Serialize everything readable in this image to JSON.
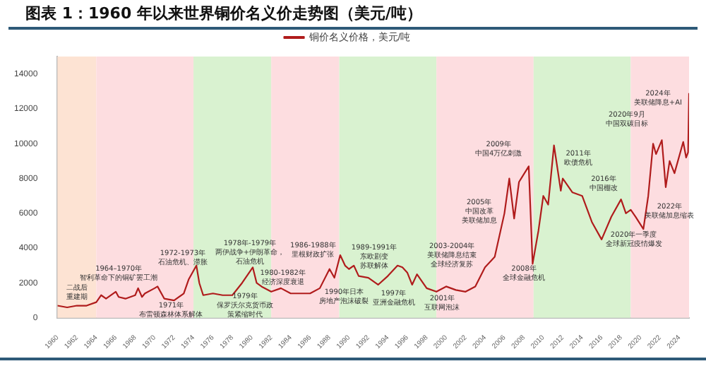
{
  "chart_data": {
    "type": "line",
    "title": "图表 1：1960 年以来世界铜价名义价走势图（美元/吨）",
    "legend": "top",
    "grid": false,
    "marker": "none",
    "line_style": "solid",
    "xlim": [
      1960,
      2025
    ],
    "xticks": [
      1960,
      1962,
      1964,
      1966,
      1968,
      1970,
      1972,
      1974,
      1976,
      1978,
      1980,
      1982,
      1984,
      1986,
      1988,
      1990,
      1992,
      1994,
      1996,
      1998,
      2000,
      2002,
      2004,
      2006,
      2008,
      2010,
      2012,
      2014,
      2016,
      2018,
      2020,
      2022,
      2024
    ],
    "ylim": [
      0,
      15000
    ],
    "yticks": [
      0,
      2000,
      4000,
      6000,
      8000,
      10000,
      12000,
      14000
    ],
    "series": [
      {
        "name": "铜价名义价格，美元/吨",
        "color": "#b01c1c",
        "x": [
          1960,
          1961,
          1962,
          1963,
          1964,
          1964.5,
          1965,
          1966,
          1966.3,
          1967,
          1968,
          1968.3,
          1968.7,
          1969,
          1970,
          1970.3,
          1971,
          1972,
          1973,
          1973.5,
          1974.3,
          1974.6,
          1975,
          1976,
          1977,
          1978,
          1979,
          1980.1,
          1980.5,
          1981,
          1982,
          1983,
          1984,
          1985,
          1986,
          1987,
          1988,
          1988.5,
          1989.1,
          1989.6,
          1990,
          1990.5,
          1991,
          1992,
          1993,
          1994,
          1995,
          1995.5,
          1996,
          1996.5,
          1997,
          1998,
          1999,
          2000,
          2001,
          2002,
          2003,
          2004,
          2005,
          2006,
          2006.5,
          2007,
          2007.5,
          2008.5,
          2008.9,
          2009.5,
          2010,
          2010.5,
          2011.1,
          2011.8,
          2012,
          2013,
          2014,
          2015,
          2016,
          2017,
          2018,
          2018.5,
          2019,
          2019.5,
          2020.3,
          2020.8,
          2021.3,
          2021.6,
          2022.2,
          2022.6,
          2023,
          2023.5,
          2024.4,
          2024.7,
          2024.9,
          2025
        ],
        "values": [
          700,
          600,
          700,
          700,
          900,
          1300,
          1100,
          1500,
          1200,
          1100,
          1300,
          1700,
          1200,
          1400,
          1700,
          1800,
          1100,
          1000,
          1400,
          2200,
          3000,
          2000,
          1300,
          1400,
          1300,
          1300,
          2000,
          2900,
          2000,
          1800,
          1500,
          1700,
          1400,
          1400,
          1400,
          1700,
          2800,
          2300,
          3600,
          3000,
          2800,
          3000,
          2400,
          2300,
          1900,
          2400,
          3000,
          2900,
          2600,
          1900,
          2500,
          1700,
          1500,
          1800,
          1600,
          1500,
          1800,
          2900,
          3500,
          6000,
          8000,
          5700,
          7800,
          8700,
          3100,
          5000,
          7000,
          6500,
          9900,
          7300,
          8000,
          7200,
          7000,
          5500,
          4500,
          5800,
          6800,
          6000,
          6200,
          5800,
          5100,
          7000,
          10000,
          9400,
          10200,
          7500,
          9000,
          8300,
          10100,
          9200,
          9500,
          12900
        ]
      }
    ],
    "bands": [
      {
        "axis": "x",
        "from": 1960,
        "to": 1964,
        "color": "#fde3d3"
      },
      {
        "axis": "x",
        "from": 1964,
        "to": 1974,
        "color": "#fddde0"
      },
      {
        "axis": "x",
        "from": 1974,
        "to": 1982,
        "color": "#d9f2d0"
      },
      {
        "axis": "x",
        "from": 1982,
        "to": 1989,
        "color": "#fddde0"
      },
      {
        "axis": "x",
        "from": 1989,
        "to": 1999,
        "color": "#d9f2d0"
      },
      {
        "axis": "x",
        "from": 1999,
        "to": 2009,
        "color": "#fddde0"
      },
      {
        "axis": "x",
        "from": 2009,
        "to": 2019,
        "color": "#d9f2d0"
      },
      {
        "axis": "x",
        "from": 2019,
        "to": 2025,
        "color": "#fddde0"
      }
    ],
    "annotations": [
      "二战后重建期",
      "1964–1970年智利革命下的铜矿罢工潮",
      "1971年布雷顿森林体系解体",
      "1972-1973年石油危机、滞胀",
      "1978年-1979年两伊战争+伊朗革命，石油危机",
      "1979年保罗沃尔克货币政策紧缩时代",
      "1980-1982年经济深度衰退",
      "1986-1988年里根财政扩张",
      "1989-1991年东欧剧变苏联解体",
      "1990年日本房地产泡沫破裂",
      "1997年亚洲金融危机",
      "2003-2004年美联储降息结束全球经济复苏",
      "2001年互联网泡沫",
      "2005年中国改革美联储加息",
      "2009年中国4万亿刺激",
      "2008年全球金融危机",
      "2011年欧债危机",
      "2016年中国棚改",
      "2020年一季度全球新冠疫情爆发",
      "2022年美联储加息缩表",
      "2020年9月中国双碳目标",
      "2024年美联储降息+AI"
    ]
  }
}
